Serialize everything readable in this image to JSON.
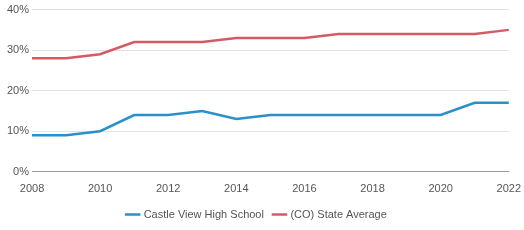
{
  "chart_data": {
    "type": "line",
    "x": [
      2008,
      2009,
      2010,
      2011,
      2012,
      2013,
      2014,
      2015,
      2016,
      2017,
      2018,
      2019,
      2020,
      2021,
      2022
    ],
    "series": [
      {
        "name": "Castle View High School",
        "color": "#2b8fc9",
        "values": [
          9,
          9,
          10,
          14,
          14,
          15,
          13,
          14,
          14,
          14,
          14,
          14,
          14,
          17,
          17
        ]
      },
      {
        "name": "(CO) State Average",
        "color": "#d65a63",
        "values": [
          28,
          28,
          29,
          32,
          32,
          32,
          33,
          33,
          33,
          34,
          34,
          34,
          34,
          34,
          35
        ]
      }
    ],
    "xlim": [
      2008,
      2022
    ],
    "xticks": [
      2008,
      2010,
      2012,
      2014,
      2016,
      2018,
      2020,
      2022
    ],
    "ylim": [
      0,
      40
    ],
    "yticks": [
      {
        "value": 0,
        "label": "0%"
      },
      {
        "value": 10,
        "label": "10%"
      },
      {
        "value": 20,
        "label": "20%"
      },
      {
        "value": 30,
        "label": "30%"
      },
      {
        "value": 40,
        "label": "40%"
      }
    ],
    "grid": true,
    "legend": "bottom"
  }
}
